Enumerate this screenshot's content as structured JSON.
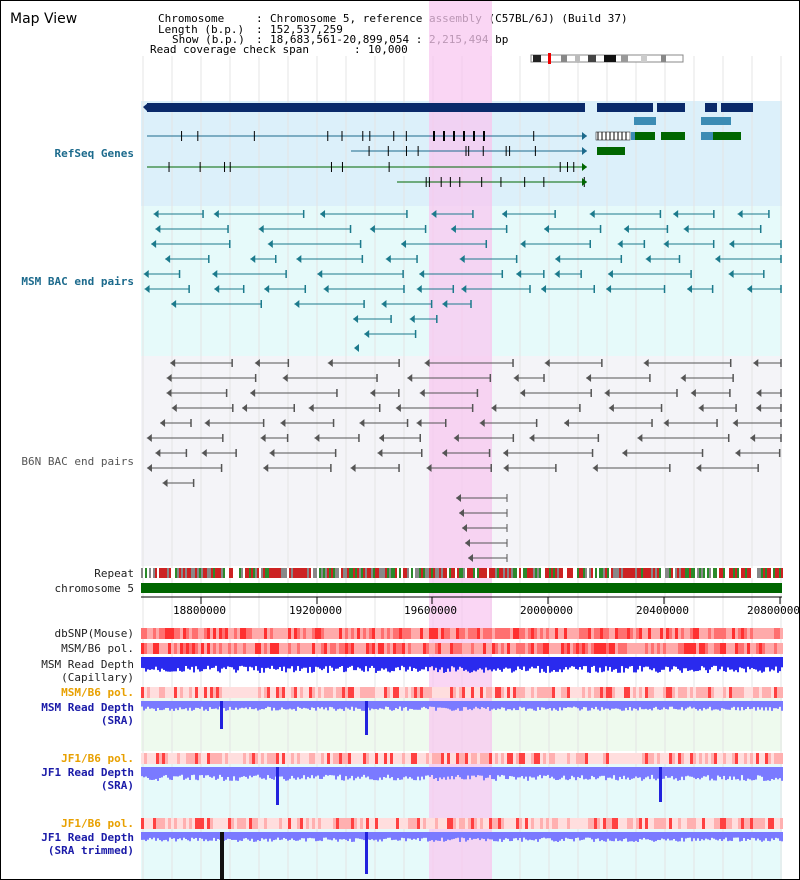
{
  "page": {
    "title": "Map View"
  },
  "info": {
    "chromosome_label": "Chromosome",
    "chromosome_value": "Chromosome 5, reference assembly (C57BL/6J) (Build 37)",
    "length_label": "Length (b.p.)",
    "length_value": "152,537,259",
    "show_label": "Show (b.p.)",
    "show_value": "18,683,561-20,899,054 : 2,215,494 bp",
    "coverage_label": "Read coverage check span",
    "coverage_value": "10,000"
  },
  "tracks": {
    "refseq": "RefSeq Genes",
    "msm_bac": "MSM BAC end pairs",
    "b6n_bac": "B6N BAC end pairs",
    "repeat": "Repeat",
    "chromosome": "chromosome 5",
    "dbsnp": "dbSNP(Mouse)",
    "msm_b6_pol_1": "MSM/B6 pol.",
    "msm_read_depth_cap_1": "MSM Read Depth",
    "msm_read_depth_cap_2": "(Capillary)",
    "msm_b6_pol_2": "MSM/B6 pol.",
    "msm_read_depth_sra_1": "MSM Read Depth",
    "msm_read_depth_sra_2": "(SRA)",
    "jf1_b6_pol_1": "JF1/B6 pol.",
    "jf1_read_depth_sra_1": "JF1 Read Depth",
    "jf1_read_depth_sra_2": "(SRA)",
    "jf1_b6_pol_2": "JF1/B6 pol.",
    "jf1_read_depth_trim_1": "JF1 Read Depth",
    "jf1_read_depth_trim_2": "(SRA trimmed)"
  },
  "axis": {
    "ticks": [
      "18800000",
      "19200000",
      "19600000",
      "20000000",
      "20400000",
      "20800000"
    ]
  },
  "colors": {
    "highlight": "#f8c8f0",
    "gene_navy": "#0a2a6a",
    "gene_teal": "#1c6a8c",
    "gene_green": "#006600",
    "bac_teal": "#1c7a8c",
    "bac_grey": "#555555",
    "depth_blue": "#2a2aff",
    "depth_light": "#7a7aff",
    "pol_red": "#ff6666"
  }
}
